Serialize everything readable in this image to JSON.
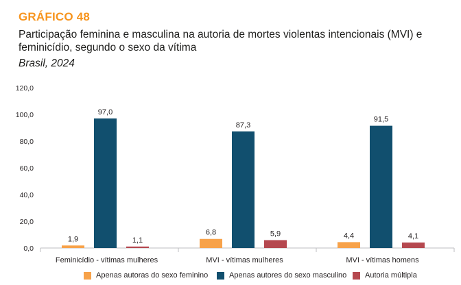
{
  "header": {
    "label": "GRÁFICO 48",
    "title": "Participação feminina e masculina na autoria de mortes violentas intencionais (MVI) e feminicídio, segundo o sexo da vítima",
    "subtitle": "Brasil, 2024"
  },
  "colors": {
    "accent": "#f7941d",
    "series_female": "#f7a24a",
    "series_male": "#114f6e",
    "series_multiple": "#b5484f",
    "axis": "#bcbec0",
    "grid": "#d9d9d9"
  },
  "chart_data": {
    "type": "bar",
    "categories": [
      "Feminicídio - vítimas mulheres",
      "MVI - vítimas mulheres",
      "MVI - vítimas homens"
    ],
    "series": [
      {
        "name": "Apenas autoras do sexo feminino",
        "values": [
          1.9,
          6.8,
          4.4
        ],
        "labels": [
          "1,9",
          "6,8",
          "4,4"
        ]
      },
      {
        "name": "Apenas autores do sexo masculino",
        "values": [
          97.0,
          87.3,
          91.5
        ],
        "labels": [
          "97,0",
          "87,3",
          "91,5"
        ]
      },
      {
        "name": "Autoria múltipla",
        "values": [
          1.1,
          5.9,
          4.1
        ],
        "labels": [
          "1,1",
          "5,9",
          "4,1"
        ]
      }
    ],
    "ylim": [
      0,
      120
    ],
    "yticks": [
      0,
      20,
      40,
      60,
      80,
      100,
      120
    ],
    "ytick_labels": [
      "0,0",
      "20,0",
      "40,0",
      "60,0",
      "80,0",
      "100,0",
      "120,0"
    ],
    "grid": false,
    "legend": "bottom"
  }
}
